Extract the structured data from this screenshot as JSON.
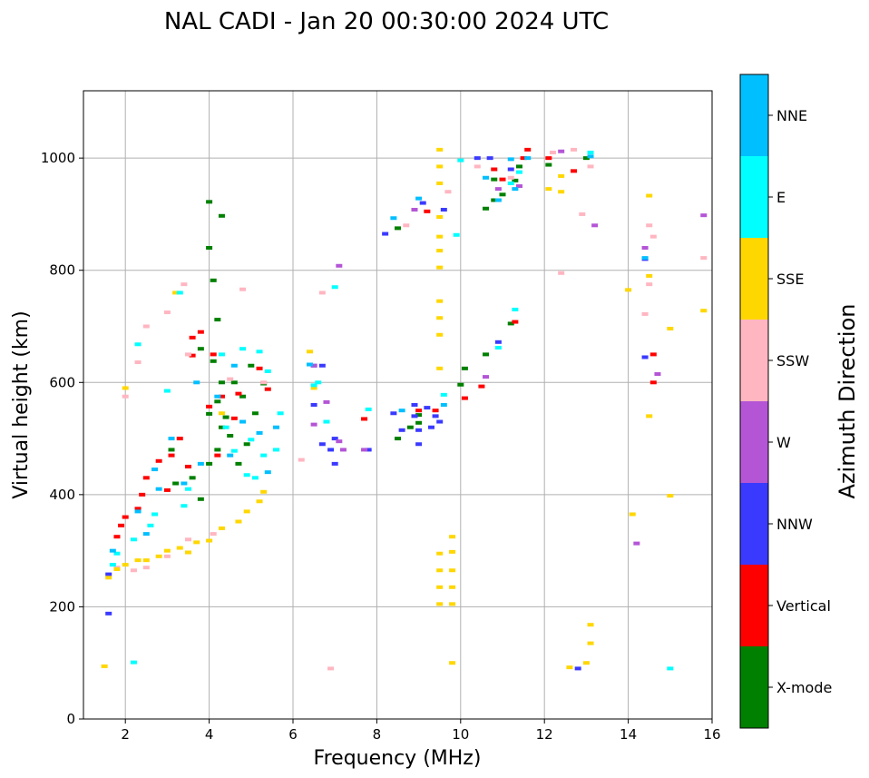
{
  "chart_data": {
    "type": "scatter",
    "title": "NAL CADI - Jan 20 00:30:00 2024 UTC",
    "xlabel": "Frequency (MHz)",
    "ylabel": "Virtual height (km)",
    "xlim": [
      1,
      16
    ],
    "ylim": [
      0,
      1120
    ],
    "xticks": [
      2,
      4,
      6,
      8,
      10,
      12,
      14,
      16
    ],
    "yticks": [
      0,
      200,
      400,
      600,
      800,
      1000
    ],
    "grid": true,
    "colorbar": {
      "title": "Azimuth Direction",
      "categories": [
        "X-mode",
        "Vertical",
        "NNW",
        "W",
        "SSW",
        "SSE",
        "E",
        "NNE"
      ],
      "colors": [
        "#008000",
        "#ff0000",
        "#3a3aff",
        "#b455d6",
        "#ffb6c1",
        "#ffd700",
        "#00ffff",
        "#00bfff"
      ]
    },
    "series": [
      {
        "name": "X-mode",
        "points": [
          [
            4.0,
            922
          ],
          [
            4.3,
            897
          ],
          [
            4.0,
            840
          ],
          [
            4.1,
            782
          ],
          [
            4.2,
            712
          ],
          [
            3.8,
            660
          ],
          [
            4.1,
            638
          ],
          [
            4.3,
            600
          ],
          [
            4.2,
            566
          ],
          [
            4.6,
            600
          ],
          [
            4.8,
            575
          ],
          [
            5.0,
            630
          ],
          [
            5.3,
            598
          ],
          [
            4.4,
            538
          ],
          [
            4.2,
            480
          ],
          [
            4.5,
            505
          ],
          [
            4.0,
            455
          ],
          [
            3.6,
            430
          ],
          [
            3.2,
            420
          ],
          [
            3.8,
            392
          ],
          [
            4.3,
            520
          ],
          [
            4.9,
            490
          ],
          [
            5.1,
            545
          ],
          [
            4.0,
            544
          ],
          [
            4.7,
            455
          ],
          [
            3.1,
            480
          ],
          [
            8.5,
            875
          ],
          [
            9.0,
            542
          ],
          [
            9.0,
            528
          ],
          [
            8.5,
            500
          ],
          [
            8.8,
            520
          ],
          [
            10.1,
            625
          ],
          [
            10.0,
            596
          ],
          [
            10.6,
            650
          ],
          [
            11.2,
            705
          ],
          [
            10.6,
            910
          ],
          [
            10.8,
            925
          ],
          [
            11.0,
            935
          ],
          [
            11.3,
            960
          ],
          [
            11.4,
            985
          ],
          [
            12.1,
            988
          ],
          [
            13.0,
            1000
          ],
          [
            10.8,
            962
          ]
        ]
      },
      {
        "name": "Vertical",
        "points": [
          [
            3.8,
            690
          ],
          [
            3.6,
            680
          ],
          [
            4.1,
            650
          ],
          [
            3.6,
            648
          ],
          [
            4.3,
            575
          ],
          [
            4.7,
            580
          ],
          [
            5.4,
            588
          ],
          [
            5.2,
            625
          ],
          [
            4.6,
            536
          ],
          [
            4.0,
            557
          ],
          [
            3.3,
            500
          ],
          [
            3.1,
            470
          ],
          [
            2.8,
            460
          ],
          [
            2.5,
            430
          ],
          [
            2.4,
            400
          ],
          [
            2.3,
            375
          ],
          [
            2.0,
            360
          ],
          [
            1.9,
            345
          ],
          [
            1.8,
            325
          ],
          [
            3.5,
            450
          ],
          [
            4.2,
            470
          ],
          [
            3.0,
            408
          ],
          [
            7.7,
            535
          ],
          [
            9.0,
            550
          ],
          [
            9.4,
            550
          ],
          [
            9.2,
            905
          ],
          [
            10.1,
            572
          ],
          [
            10.5,
            593
          ],
          [
            11.3,
            708
          ],
          [
            11.0,
            962
          ],
          [
            11.5,
            1000
          ],
          [
            12.1,
            1000
          ],
          [
            12.7,
            977
          ],
          [
            14.6,
            650
          ],
          [
            14.6,
            600
          ],
          [
            10.8,
            980
          ],
          [
            11.6,
            1015
          ]
        ]
      },
      {
        "name": "NNW",
        "points": [
          [
            1.6,
            188
          ],
          [
            1.6,
            258
          ],
          [
            6.5,
            630
          ],
          [
            6.7,
            630
          ],
          [
            6.5,
            560
          ],
          [
            6.7,
            490
          ],
          [
            6.9,
            480
          ],
          [
            7.0,
            455
          ],
          [
            7.0,
            500
          ],
          [
            7.8,
            480
          ],
          [
            8.4,
            545
          ],
          [
            8.9,
            560
          ],
          [
            8.9,
            540
          ],
          [
            9.0,
            515
          ],
          [
            9.2,
            555
          ],
          [
            9.4,
            540
          ],
          [
            9.5,
            530
          ],
          [
            9.3,
            520
          ],
          [
            8.6,
            515
          ],
          [
            9.0,
            490
          ],
          [
            9.1,
            920
          ],
          [
            10.4,
            1000
          ],
          [
            10.7,
            1000
          ],
          [
            11.2,
            980
          ],
          [
            12.8,
            90
          ],
          [
            14.4,
            820
          ],
          [
            14.4,
            645
          ],
          [
            8.2,
            865
          ],
          [
            9.6,
            908
          ],
          [
            10.9,
            672
          ]
        ]
      },
      {
        "name": "W",
        "points": [
          [
            6.5,
            630
          ],
          [
            6.5,
            525
          ],
          [
            6.8,
            565
          ],
          [
            7.1,
            495
          ],
          [
            7.2,
            480
          ],
          [
            7.7,
            480
          ],
          [
            7.1,
            808
          ],
          [
            8.9,
            908
          ],
          [
            10.6,
            610
          ],
          [
            11.4,
            950
          ],
          [
            13.2,
            880
          ],
          [
            14.4,
            840
          ],
          [
            14.7,
            615
          ],
          [
            14.2,
            313
          ],
          [
            15.8,
            898
          ],
          [
            10.9,
            945
          ],
          [
            12.4,
            1012
          ]
        ]
      },
      {
        "name": "SSW",
        "points": [
          [
            2.0,
            575
          ],
          [
            2.3,
            636
          ],
          [
            2.5,
            700
          ],
          [
            3.0,
            725
          ],
          [
            3.4,
            775
          ],
          [
            3.5,
            650
          ],
          [
            4.8,
            766
          ],
          [
            6.7,
            760
          ],
          [
            5.3,
            600
          ],
          [
            4.5,
            606
          ],
          [
            2.5,
            270
          ],
          [
            3.0,
            290
          ],
          [
            3.5,
            320
          ],
          [
            4.1,
            330
          ],
          [
            2.2,
            265
          ],
          [
            1.8,
            270
          ],
          [
            6.9,
            90
          ],
          [
            8.7,
            880
          ],
          [
            9.7,
            940
          ],
          [
            10.4,
            985
          ],
          [
            11.2,
            965
          ],
          [
            12.2,
            1010
          ],
          [
            12.7,
            1015
          ],
          [
            13.1,
            985
          ],
          [
            12.9,
            900
          ],
          [
            12.4,
            795
          ],
          [
            14.5,
            880
          ],
          [
            14.6,
            860
          ],
          [
            14.5,
            775
          ],
          [
            14.4,
            722
          ],
          [
            15.8,
            822
          ],
          [
            6.2,
            462
          ]
        ]
      },
      {
        "name": "SSE",
        "points": [
          [
            1.5,
            94
          ],
          [
            1.6,
            252
          ],
          [
            1.8,
            267
          ],
          [
            2.0,
            275
          ],
          [
            2.3,
            283
          ],
          [
            2.5,
            283
          ],
          [
            2.8,
            290
          ],
          [
            3.0,
            300
          ],
          [
            3.3,
            305
          ],
          [
            3.5,
            297
          ],
          [
            3.7,
            315
          ],
          [
            4.0,
            318
          ],
          [
            4.3,
            340
          ],
          [
            4.7,
            352
          ],
          [
            4.9,
            370
          ],
          [
            5.2,
            388
          ],
          [
            5.3,
            405
          ],
          [
            3.2,
            760
          ],
          [
            2.0,
            590
          ],
          [
            4.3,
            545
          ],
          [
            9.5,
            1015
          ],
          [
            9.5,
            985
          ],
          [
            9.5,
            955
          ],
          [
            9.5,
            895
          ],
          [
            9.5,
            860
          ],
          [
            9.5,
            835
          ],
          [
            9.5,
            805
          ],
          [
            9.5,
            745
          ],
          [
            9.5,
            715
          ],
          [
            9.5,
            685
          ],
          [
            9.5,
            625
          ],
          [
            9.5,
            295
          ],
          [
            9.5,
            265
          ],
          [
            9.5,
            235
          ],
          [
            9.5,
            205
          ],
          [
            9.8,
            325
          ],
          [
            9.8,
            298
          ],
          [
            9.8,
            265
          ],
          [
            9.8,
            235
          ],
          [
            9.8,
            205
          ],
          [
            9.8,
            100
          ],
          [
            12.1,
            945
          ],
          [
            12.4,
            940
          ],
          [
            12.4,
            968
          ],
          [
            13.1,
            168
          ],
          [
            13.1,
            135
          ],
          [
            13.0,
            100
          ],
          [
            12.6,
            92
          ],
          [
            14.0,
            765
          ],
          [
            14.5,
            933
          ],
          [
            14.5,
            790
          ],
          [
            14.5,
            540
          ],
          [
            14.1,
            365
          ],
          [
            15.0,
            696
          ],
          [
            15.0,
            398
          ],
          [
            15.8,
            728
          ],
          [
            6.4,
            655
          ],
          [
            6.5,
            590
          ]
        ]
      },
      {
        "name": "E",
        "points": [
          [
            2.3,
            668
          ],
          [
            3.3,
            760
          ],
          [
            3.0,
            585
          ],
          [
            3.5,
            410
          ],
          [
            4.3,
            650
          ],
          [
            4.8,
            660
          ],
          [
            5.2,
            655
          ],
          [
            5.4,
            620
          ],
          [
            5.7,
            545
          ],
          [
            5.0,
            498
          ],
          [
            4.6,
            478
          ],
          [
            5.3,
            470
          ],
          [
            4.9,
            435
          ],
          [
            5.1,
            430
          ],
          [
            5.6,
            480
          ],
          [
            4.4,
            520
          ],
          [
            2.2,
            320
          ],
          [
            2.6,
            345
          ],
          [
            3.4,
            380
          ],
          [
            1.8,
            295
          ],
          [
            1.7,
            275
          ],
          [
            6.6,
            600
          ],
          [
            7.0,
            770
          ],
          [
            6.8,
            530
          ],
          [
            7.8,
            552
          ],
          [
            9.6,
            578
          ],
          [
            9.9,
            863
          ],
          [
            10.0,
            996
          ],
          [
            10.9,
            662
          ],
          [
            11.2,
            955
          ],
          [
            11.4,
            975
          ],
          [
            11.3,
            730
          ],
          [
            13.1,
            1010
          ],
          [
            15.0,
            90
          ],
          [
            2.2,
            101
          ],
          [
            2.7,
            365
          ],
          [
            6.5,
            595
          ]
        ]
      },
      {
        "name": "NNE",
        "points": [
          [
            2.7,
            445
          ],
          [
            2.8,
            410
          ],
          [
            3.1,
            500
          ],
          [
            3.4,
            420
          ],
          [
            2.3,
            370
          ],
          [
            1.7,
            300
          ],
          [
            2.5,
            330
          ],
          [
            3.7,
            600
          ],
          [
            4.2,
            575
          ],
          [
            4.8,
            530
          ],
          [
            5.2,
            510
          ],
          [
            5.4,
            440
          ],
          [
            4.5,
            470
          ],
          [
            5.6,
            520
          ],
          [
            3.8,
            455
          ],
          [
            6.4,
            632
          ],
          [
            8.4,
            893
          ],
          [
            9.0,
            928
          ],
          [
            10.6,
            965
          ],
          [
            11.2,
            998
          ],
          [
            11.3,
            945
          ],
          [
            11.6,
            1000
          ],
          [
            13.1,
            1003
          ],
          [
            14.4,
            822
          ],
          [
            8.6,
            550
          ],
          [
            9.6,
            560
          ],
          [
            10.9,
            925
          ],
          [
            4.6,
            630
          ]
        ]
      }
    ]
  }
}
